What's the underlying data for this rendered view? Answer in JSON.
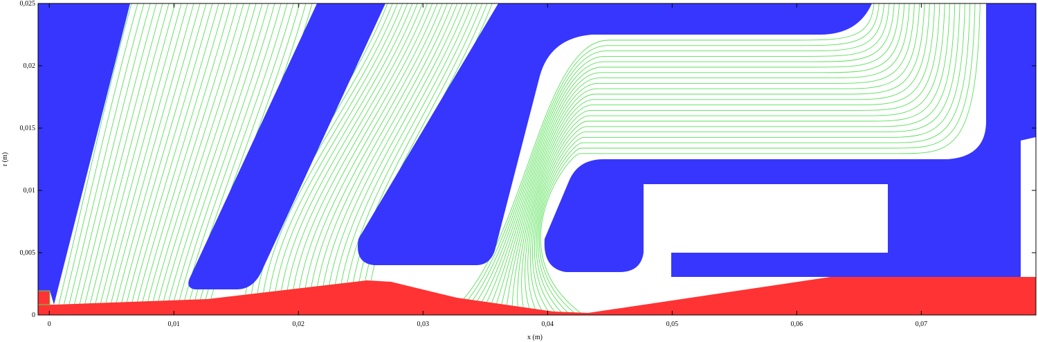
{
  "chart_data": {
    "type": "field",
    "xlabel": "x (m)",
    "ylabel": "r (m)",
    "xlim": [
      -0.0009,
      0.0792
    ],
    "ylim": [
      0,
      0.025
    ],
    "xticks": [
      0,
      {
        "value": 0.01,
        "label": "0,01"
      },
      {
        "value": 0.02,
        "label": "0,02"
      },
      {
        "value": 0.03,
        "label": "0,03"
      },
      {
        "value": 0.04,
        "label": "0,04"
      },
      {
        "value": 0.05,
        "label": "0,05"
      },
      {
        "value": 0.06,
        "label": "0,06"
      },
      {
        "value": 0.07,
        "label": "0,07"
      }
    ],
    "yticks": [
      0,
      {
        "value": 0.005,
        "label": "0,005"
      },
      {
        "value": 0.01,
        "label": "0,01"
      },
      {
        "value": 0.015,
        "label": "0,015"
      },
      {
        "value": 0.02,
        "label": "0,02"
      },
      {
        "value": 0.025,
        "label": "0,025"
      }
    ]
  }
}
